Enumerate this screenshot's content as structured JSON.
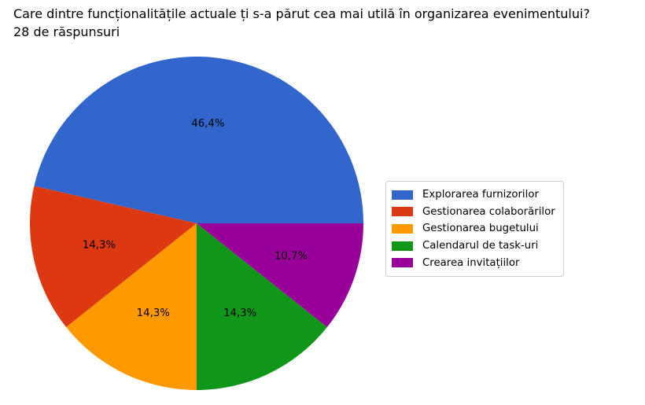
{
  "title": {
    "line1": "Care dintre funcționalitățile actuale ți s-a părut cea mai utilă în organizarea evenimentului?",
    "line2": "28 de răspunsuri"
  },
  "chart_data": {
    "type": "pie",
    "title": "Care dintre funcționalitățile actuale ți s-a părut cea mai utilă în organizarea evenimentului?",
    "subtitle": "28 de răspunsuri",
    "response_count": 28,
    "labels": [
      "Explorarea furnizorilor",
      "Gestionarea colaborărilor",
      "Gestionarea bugetului",
      "Calendarul de task-uri",
      "Crearea invitațiilor"
    ],
    "values": [
      46.4,
      14.3,
      14.3,
      14.3,
      10.7
    ],
    "pct_labels": [
      "46,4%",
      "14,3%",
      "14,3%",
      "14,3%",
      "10,7%"
    ],
    "colors": [
      "#3366CC",
      "#DC3912",
      "#FF9900",
      "#109618",
      "#990099"
    ],
    "start_angle_deg": 0,
    "direction": "counterclockwise",
    "pct_distance": 0.6,
    "legend_position": "right",
    "label_color": "#000000"
  }
}
